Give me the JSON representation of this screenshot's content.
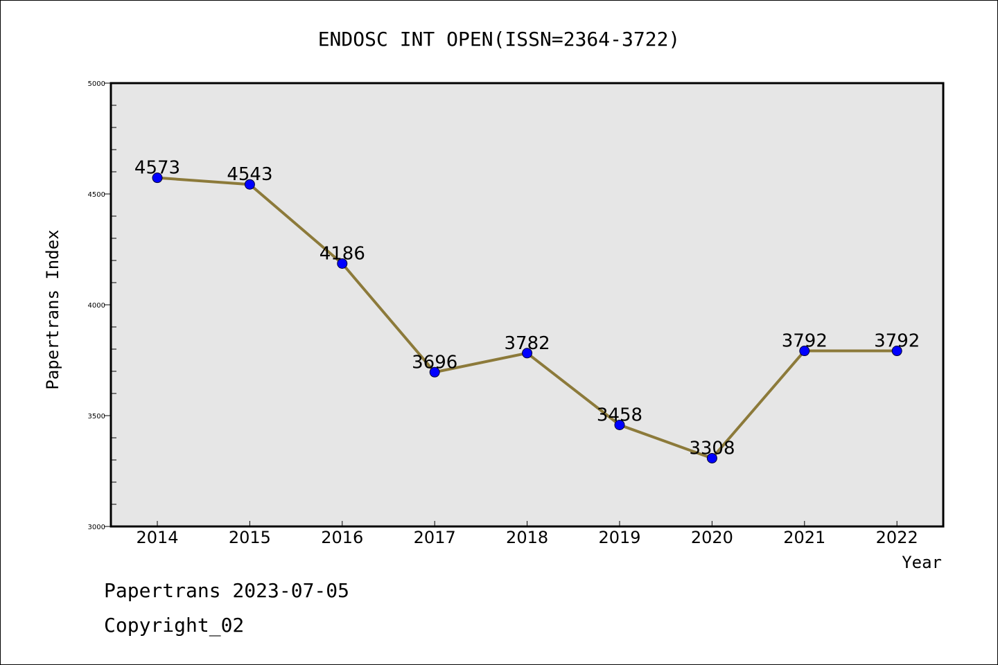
{
  "chart_data": {
    "type": "line",
    "title": "ENDOSC INT OPEN(ISSN=2364-3722)",
    "xlabel": "Year",
    "ylabel": "Papertrans Index",
    "x": [
      "2014",
      "2015",
      "2016",
      "2017",
      "2018",
      "2019",
      "2020",
      "2021",
      "2022"
    ],
    "series": [
      {
        "values": [
          4573,
          4543,
          4186,
          3696,
          3782,
          3458,
          3308,
          3792,
          3792
        ]
      }
    ],
    "data_labels": [
      "4573",
      "4543",
      "4186",
      "3696",
      "3782",
      "3458",
      "3308",
      "3792",
      "3792"
    ],
    "ylim": [
      3000,
      5000
    ],
    "y_ticks": [
      "3000",
      "3500",
      "4000",
      "4500",
      "5000"
    ],
    "y_tick_values": [
      3000,
      3500,
      4000,
      4500,
      5000
    ],
    "y_minor_step": 100,
    "grid": false,
    "legend": "none",
    "colors": {
      "line": "#8c7a3a",
      "marker": "#0000ff",
      "plot_background": "#e6e6e6"
    }
  },
  "footer": {
    "date_text": "Papertrans 2023-07-05",
    "copyright_text": "Copyright_02"
  }
}
